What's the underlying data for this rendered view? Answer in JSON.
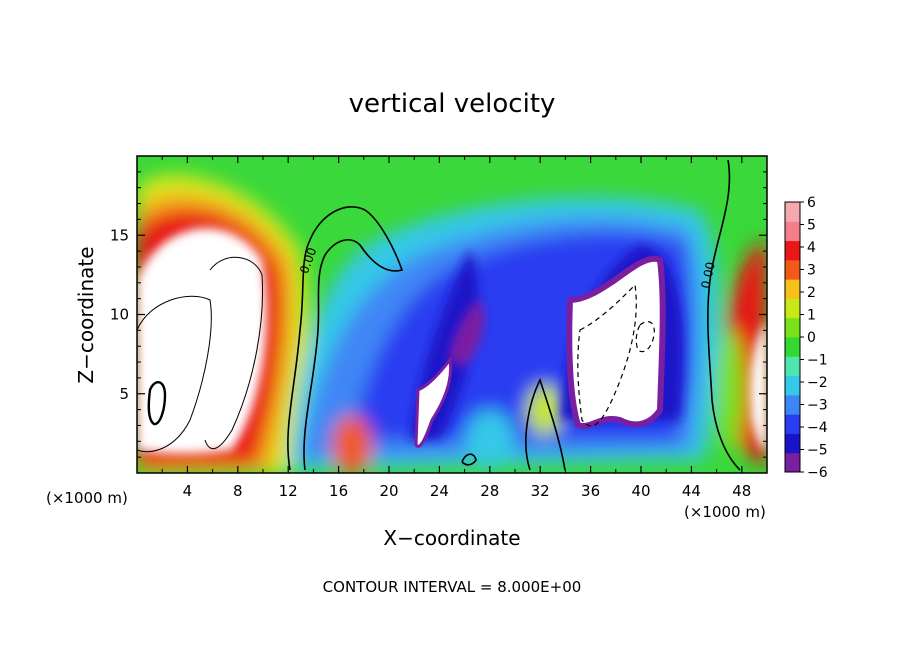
{
  "chart_data": {
    "type": "heatmap",
    "title": "vertical velocity",
    "xlabel": "X−coordinate",
    "ylabel": "Z−coordinate",
    "x_unit_left": "(×1000 m)",
    "x_unit_right": "(×1000 m)",
    "xlim": [
      0,
      50
    ],
    "ylim": [
      0,
      20
    ],
    "x_ticks": [
      "4",
      "8",
      "12",
      "16",
      "20",
      "24",
      "28",
      "32",
      "36",
      "40",
      "44",
      "48"
    ],
    "y_ticks": [
      "5",
      "10",
      "15"
    ],
    "colorbar": {
      "labels": [
        "6",
        "5",
        "4",
        "3",
        "2",
        "1",
        "0",
        "−1",
        "−2",
        "−3",
        "−4",
        "−5",
        "−6"
      ],
      "range": [
        -6,
        6
      ],
      "colors": [
        "#7b1fa2",
        "#1a14c8",
        "#2a3cf0",
        "#3f86f5",
        "#36c8e8",
        "#4ee6ae",
        "#33d833",
        "#79e01a",
        "#c8e818",
        "#f6c21a",
        "#f25a1a",
        "#e81818",
        "#f37f8a",
        "#f6a8b0"
      ],
      "over_color": "#ffffff",
      "under_color": "#ffffff"
    },
    "contour_label": "0.00",
    "contour_interval_text": "CONTOUR INTERVAL = 8.000E+00",
    "features": [
      {
        "kind": "updraft",
        "x": [
          0,
          11
        ],
        "z": [
          1,
          17
        ],
        "max_gt": 6
      },
      {
        "kind": "downdraft",
        "x": [
          12,
          45
        ],
        "z": [
          1,
          17
        ],
        "min": -6
      },
      {
        "kind": "updraft",
        "x": [
          46,
          50
        ],
        "z": [
          1,
          13
        ],
        "max_gt": 6
      }
    ]
  }
}
